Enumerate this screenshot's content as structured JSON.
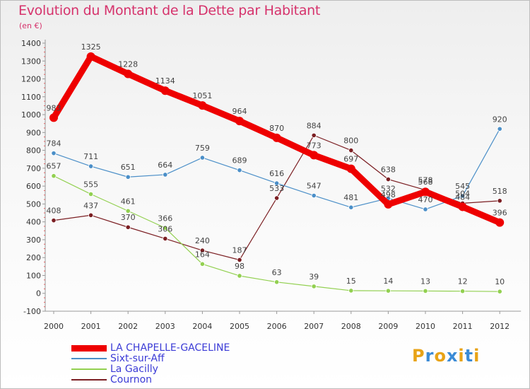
{
  "chart_data": {
    "type": "line",
    "title": "Evolution du Montant de la Dette par Habitant",
    "subtitle": "(en €)",
    "x": [
      "2000",
      "2001",
      "2002",
      "2003",
      "2004",
      "2005",
      "2006",
      "2007",
      "2008",
      "2009",
      "2010",
      "2011",
      "2012"
    ],
    "ylim": [
      -100,
      1400
    ],
    "yticks": [
      -100,
      0,
      100,
      200,
      300,
      400,
      500,
      600,
      700,
      800,
      900,
      1000,
      1100,
      1200,
      1300,
      1400
    ],
    "grid": "none",
    "legend_position": "bottom-left",
    "series": [
      {
        "name": "LA CHAPELLE-GACELINE",
        "color": "#ee0000",
        "values": [
          983,
          1325,
          1228,
          1134,
          1051,
          964,
          870,
          773,
          697,
          498,
          568,
          484,
          396
        ]
      },
      {
        "name": "Sixt-sur-Aff",
        "color": "#4b8fc8",
        "values": [
          784,
          711,
          651,
          664,
          759,
          689,
          616,
          547,
          481,
          532,
          470,
          545,
          920
        ]
      },
      {
        "name": "La Gacilly",
        "color": "#92d050",
        "values": [
          657,
          555,
          461,
          366,
          164,
          98,
          63,
          39,
          15,
          14,
          13,
          12,
          10
        ]
      },
      {
        "name": "Cournon",
        "color": "#7b1e22",
        "values": [
          408,
          437,
          370,
          306,
          240,
          187,
          533,
          884,
          800,
          638,
          578,
          504,
          518
        ]
      }
    ]
  },
  "logo": {
    "text": "Proxiti",
    "colors": [
      "#e8a317",
      "#3b8bd6",
      "#e8a317",
      "#3b8bd6",
      "#e8a317",
      "#3b8bd6",
      "#e8a317"
    ]
  }
}
